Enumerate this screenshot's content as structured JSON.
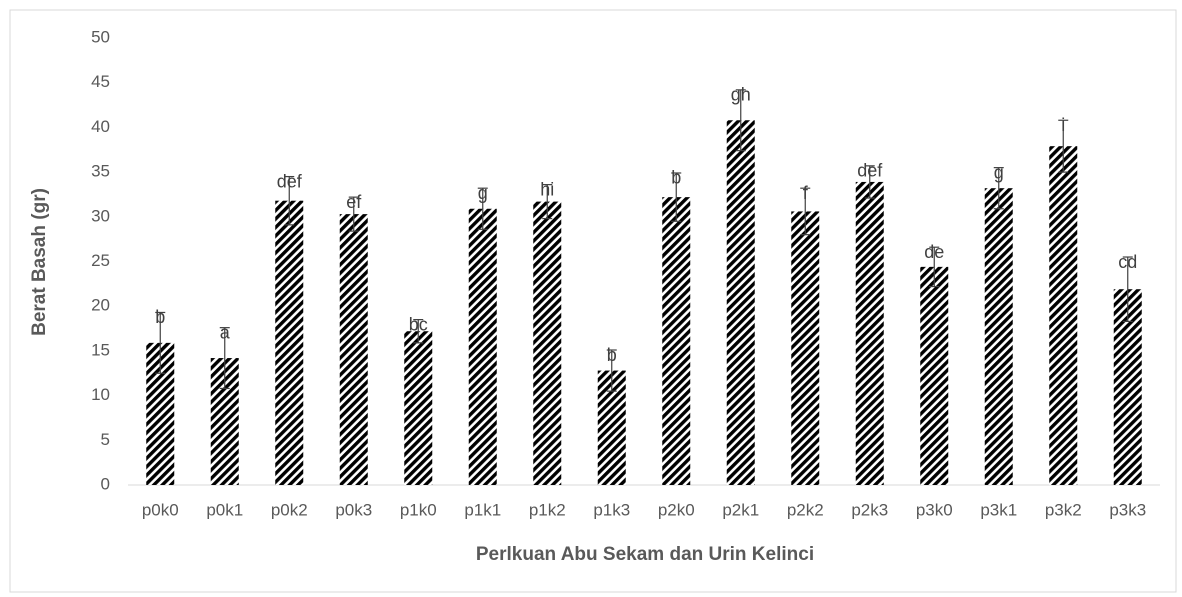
{
  "chart_data": {
    "type": "bar",
    "xlabel": "Perlkuan Abu Sekam dan Urin Kelinci",
    "ylabel": "Berat Basah (gr)",
    "categories": [
      "p0k0",
      "p0k1",
      "p0k2",
      "p0k3",
      "p1k0",
      "p1k1",
      "p1k2",
      "p1k3",
      "p2k0",
      "p2k1",
      "p2k2",
      "p2k3",
      "p3k0",
      "p3k1",
      "p3k2",
      "p3k3"
    ],
    "values": [
      15.9,
      14.2,
      31.8,
      30.3,
      17.2,
      30.9,
      31.7,
      12.8,
      32.2,
      40.8,
      30.6,
      33.9,
      24.4,
      33.2,
      37.9,
      21.9
    ],
    "errors": [
      3.4,
      3.4,
      2.7,
      1.9,
      1.3,
      2.3,
      1.9,
      2.3,
      2.7,
      3.4,
      2.6,
      1.8,
      2.2,
      2.3,
      2.9,
      3.6
    ],
    "annotations": [
      "b",
      "a",
      "def",
      "ef",
      "bc",
      "g",
      "hi",
      "b",
      "b",
      "gh",
      "f",
      "def",
      "de",
      "g",
      "i",
      "cd"
    ],
    "color": "#000000",
    "ylim": [
      0,
      50
    ],
    "yticks": [
      0,
      5,
      10,
      15,
      20,
      25,
      30,
      35,
      40,
      45,
      50
    ]
  }
}
